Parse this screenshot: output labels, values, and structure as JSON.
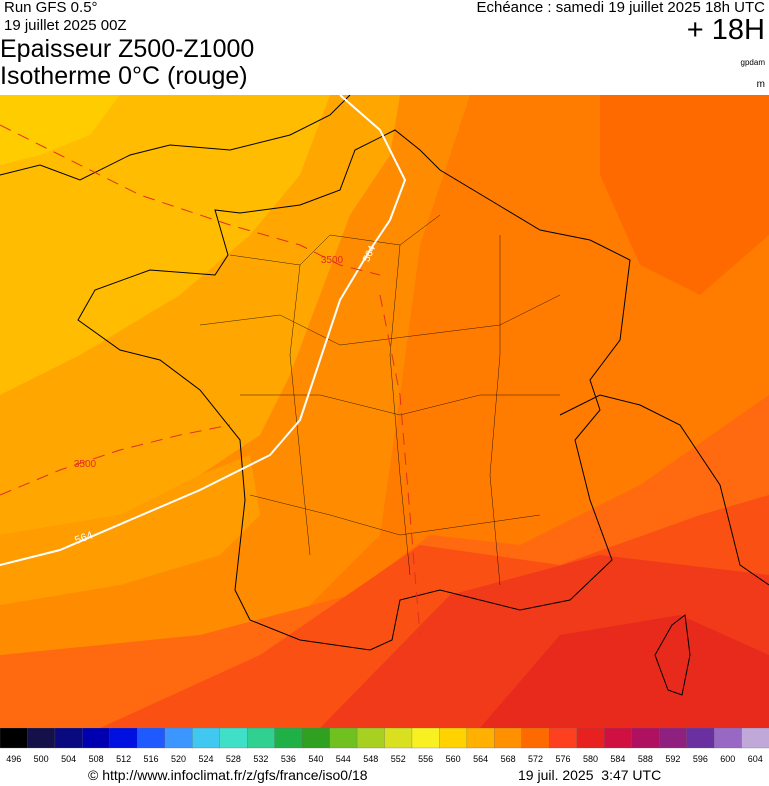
{
  "header": {
    "run": "Run GFS 0.5°",
    "run_date": "19 juillet 2025 00Z",
    "title_line1": "Epaisseur Z500-Z1000",
    "title_line2": "Isotherme 0°C (rouge)",
    "echeance": "Echéance : samedi 19 juillet 2025 18h UTC",
    "lead": "+ 18H",
    "unit_thickness": "gpdam",
    "unit_iso": "m"
  },
  "map": {
    "isotherm_labels": [
      "3500",
      "3500"
    ],
    "thickness_labels": [
      "564",
      "564"
    ]
  },
  "colorbar": {
    "labels": [
      496,
      500,
      504,
      508,
      512,
      516,
      520,
      524,
      528,
      532,
      536,
      540,
      544,
      548,
      552,
      556,
      560,
      564,
      568,
      572,
      576,
      580,
      584,
      588,
      592,
      596,
      600,
      604
    ]
  },
  "footer": {
    "url": "© http://www.infoclimat.fr/z/gfs/france/iso0/18",
    "timestamp": "19 juil. 2025  3:47 UTC"
  }
}
